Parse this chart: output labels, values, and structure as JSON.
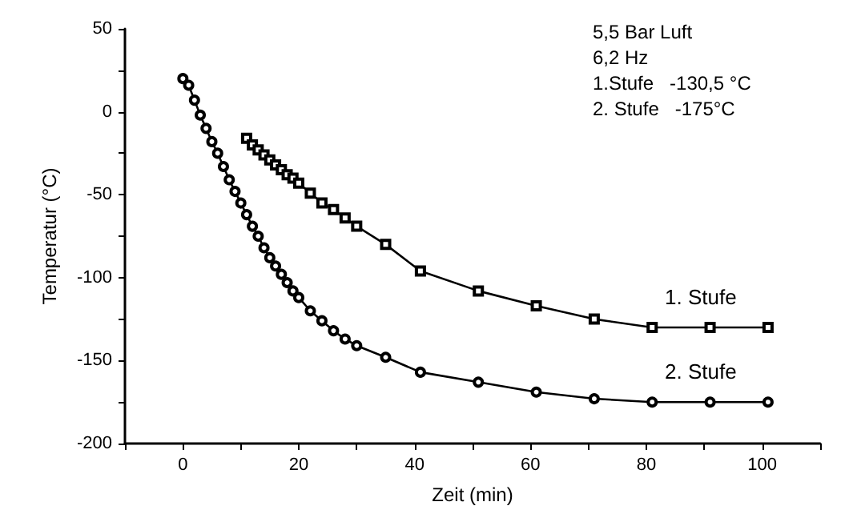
{
  "chart_data": {
    "type": "line",
    "xlabel": "Zeit (min)",
    "ylabel": "Temperatur (°C)",
    "annotations": [
      "5,5 Bar Luft",
      "6,2 Hz",
      "1.Stufe   -130,5 °C",
      "2. Stufe   -175°C"
    ],
    "series": [
      {
        "name": "1. Stufe",
        "color": "#000000",
        "marker": "square",
        "x": [
          11,
          12,
          13,
          14,
          15,
          16,
          17,
          18,
          19,
          20,
          22,
          24,
          26,
          28,
          30,
          35,
          41,
          51,
          61,
          71,
          81,
          91,
          101
        ],
        "values": [
          -16,
          -20,
          -23,
          -26,
          -29,
          -32,
          -35,
          -38,
          -40,
          -43,
          -49,
          -55,
          -59,
          -64,
          -69,
          -80,
          -96,
          -108,
          -117,
          -125,
          -130,
          -130,
          -130
        ]
      },
      {
        "name": "2. Stufe",
        "color": "#000000",
        "marker": "circle",
        "x": [
          0,
          1,
          2,
          3,
          4,
          5,
          6,
          7,
          8,
          9,
          10,
          11,
          12,
          13,
          14,
          15,
          16,
          17,
          18,
          19,
          20,
          22,
          24,
          26,
          28,
          30,
          35,
          41,
          51,
          61,
          71,
          81,
          91,
          101
        ],
        "values": [
          20,
          16,
          7,
          -2,
          -10,
          -18,
          -25,
          -33,
          -41,
          -48,
          -55,
          -62,
          -69,
          -75,
          -82,
          -88,
          -93,
          -98,
          -103,
          -108,
          -112,
          -120,
          -126,
          -132,
          -137,
          -141,
          -148,
          -157,
          -163,
          -169,
          -173,
          -175,
          -175,
          -175
        ]
      }
    ],
    "xlim": [
      -10,
      110
    ],
    "xticks": [
      {
        "value": -10,
        "label": null
      },
      0,
      {
        "value": 10,
        "label": null
      },
      20,
      {
        "value": 30,
        "label": null
      },
      40,
      {
        "value": 50,
        "label": null
      },
      60,
      {
        "value": 70,
        "label": null
      },
      80,
      {
        "value": 90,
        "label": null
      },
      100,
      {
        "value": 110,
        "label": null
      }
    ],
    "ylim": [
      -200,
      50
    ],
    "yticks": [
      -200,
      {
        "value": -175,
        "label": null
      },
      -150,
      {
        "value": -125,
        "label": null
      },
      -100,
      {
        "value": -75,
        "label": null
      },
      -50,
      {
        "value": -25,
        "label": null
      },
      0,
      {
        "value": 25,
        "label": null
      },
      50
    ],
    "grid": false,
    "legend": false,
    "line_style": "solid"
  }
}
